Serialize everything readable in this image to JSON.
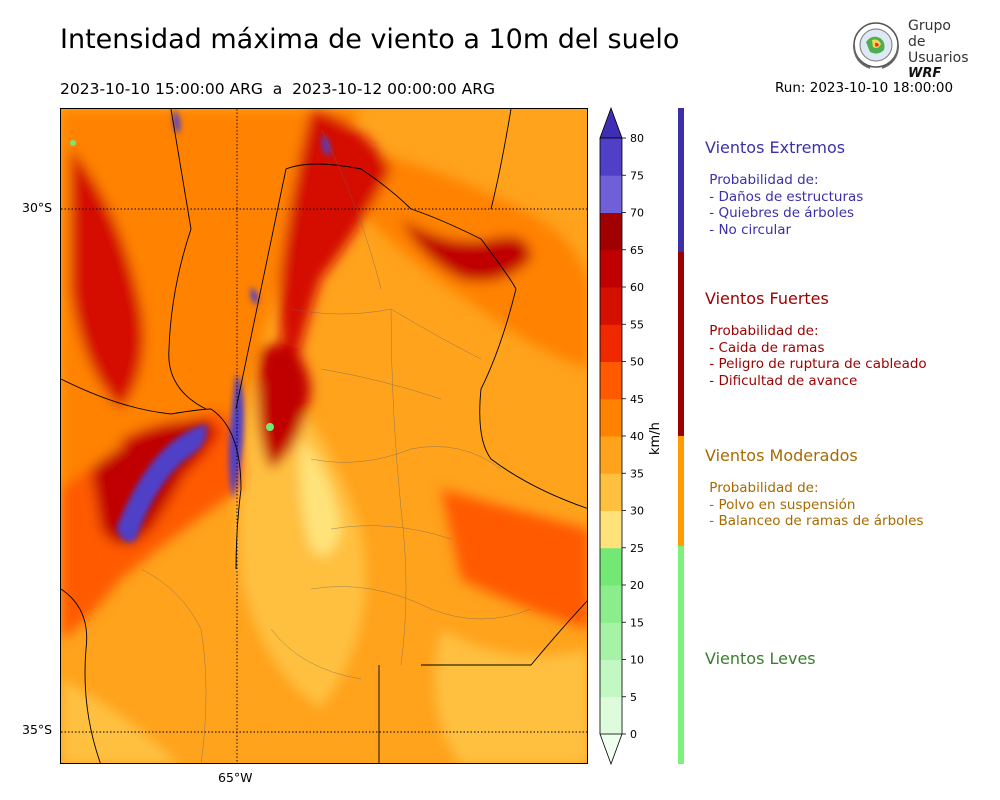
{
  "header": {
    "title": "Intensidad máxima de viento a 10m del suelo",
    "period": "2023-10-10 15:00:00 ARG  a  2023-10-12 00:00:00 ARG",
    "run": "Run: 2023-10-10 18:00:00"
  },
  "logo": {
    "line1": "Grupo de",
    "line2": "Usuarios",
    "line3": "WRF"
  },
  "map": {
    "lat_labels": [
      "30°S",
      "35°S"
    ],
    "lon_labels": [
      "65°W"
    ]
  },
  "colorbar": {
    "unit": "km/h",
    "ticks": [
      "0",
      "5",
      "10",
      "15",
      "20",
      "25",
      "30",
      "35",
      "40",
      "45",
      "50",
      "55",
      "60",
      "65",
      "70",
      "75",
      "80"
    ],
    "colors": [
      "#f0fff0",
      "#dcfcdc",
      "#c2f8c2",
      "#a6f3a6",
      "#8ced8c",
      "#74e874",
      "#ffe37a",
      "#ffc040",
      "#ffa21c",
      "#ff8200",
      "#ff5a00",
      "#f02800",
      "#d41000",
      "#c00000",
      "#a00000",
      "#7060d8",
      "#5040c8",
      "#3d2eb4"
    ]
  },
  "categories": [
    {
      "name": "Vientos Extremos",
      "color": "#3b30a8",
      "desc": " Probabilidad de:\n - Daños de estructuras\n - Quiebres de árboles\n - No circular"
    },
    {
      "name": "Vientos Fuertes",
      "color": "#9b0000",
      "desc": " Probabilidad de:\n - Caida de ramas\n - Peligro de ruptura de cableado\n - Dificultad de avance"
    },
    {
      "name": "Vientos Moderados",
      "color": "#a66a00",
      "desc": " Probabilidad de:\n - Polvo en suspensión\n - Balanceo de ramas de árboles"
    },
    {
      "name": "Vientos Leves",
      "color": "#3a7d2e",
      "desc": ""
    }
  ],
  "stripe_colors": [
    "#3b30a8",
    "#9b0000",
    "#ff9d00",
    "#7cf27c"
  ]
}
